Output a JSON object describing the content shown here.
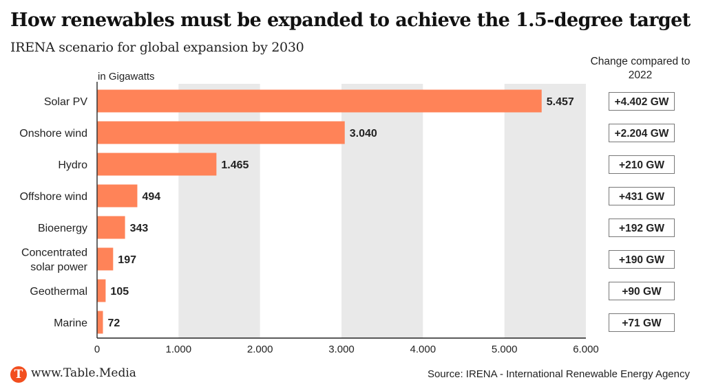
{
  "header": {
    "title": "How renewables must be expanded to achieve the 1.5-degree target",
    "subtitle": "IRENA scenario for global expansion by 2030"
  },
  "change_header": "Change compared to 2022",
  "footer": {
    "logo_letter": "T",
    "url": "www.Table.Media",
    "source": "Source: IRENA - International Renewable Energy Agency"
  },
  "colors": {
    "bar": "#ff8358",
    "band": "#e9e9e9",
    "logo": "#f24e1e"
  },
  "chart_data": {
    "type": "bar",
    "orientation": "horizontal",
    "title": "How renewables must be expanded to achieve the 1.5-degree target",
    "subtitle": "IRENA scenario for global expansion by 2030",
    "unit_label": "in Gigawatts",
    "xlabel": "",
    "ylabel": "",
    "xlim": [
      0,
      6000
    ],
    "x_ticks": [
      0,
      1000,
      2000,
      3000,
      4000,
      5000,
      6000
    ],
    "x_tick_labels": [
      "0",
      "1.000",
      "2.000",
      "3.000",
      "4.000",
      "5.000",
      "6.000"
    ],
    "grid": "alternating vertical bands",
    "categories": [
      "Solar PV",
      "Onshore wind",
      "Hydro",
      "Offshore wind",
      "Bioenergy",
      "Concentrated solar power",
      "Geothermal",
      "Marine"
    ],
    "category_lines": [
      [
        "Solar PV"
      ],
      [
        "Onshore wind"
      ],
      [
        "Hydro"
      ],
      [
        "Offshore wind"
      ],
      [
        "Bioenergy"
      ],
      [
        "Concentrated",
        "solar power"
      ],
      [
        "Geothermal"
      ],
      [
        "Marine"
      ]
    ],
    "values": [
      5457,
      3040,
      1465,
      494,
      343,
      197,
      105,
      72
    ],
    "value_labels": [
      "5.457",
      "3.040",
      "1.465",
      "494",
      "343",
      "197",
      "105",
      "72"
    ],
    "change_vs_2022": [
      "+4.402 GW",
      "+2.204 GW",
      "+210 GW",
      "+431 GW",
      "+192 GW",
      "+190 GW",
      "+90 GW",
      "+71 GW"
    ],
    "change_vs_2022_values": [
      4402,
      2204,
      210,
      431,
      192,
      190,
      90,
      71
    ]
  }
}
